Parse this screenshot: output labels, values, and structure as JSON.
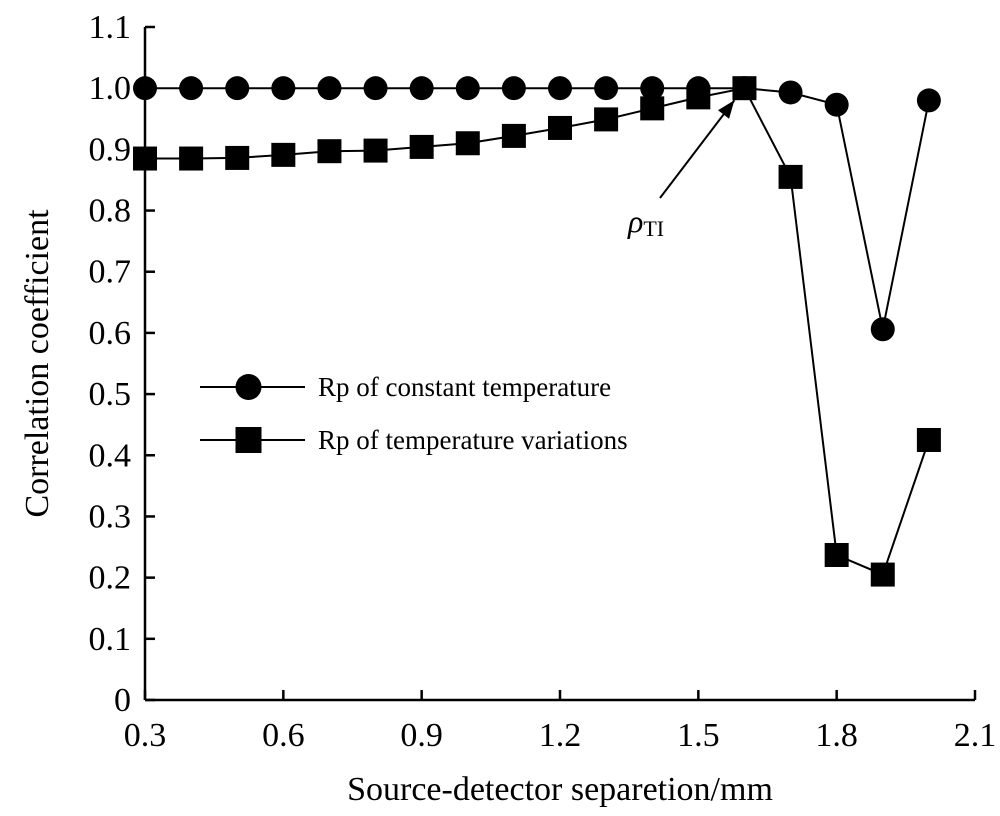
{
  "chart_data": {
    "type": "line",
    "xlabel": "Source-detector separetion/mm",
    "ylabel": "Correlation coefficient",
    "xlim": [
      0.3,
      2.1
    ],
    "ylim": [
      0,
      1.1
    ],
    "xticks": [
      "0.3",
      "0.6",
      "0.9",
      "1.2",
      "1.5",
      "1.8",
      "2.1"
    ],
    "yticks": [
      "0",
      "0.1",
      "0.2",
      "0.3",
      "0.4",
      "0.5",
      "0.6",
      "0.7",
      "0.8",
      "0.9",
      "1.0",
      "1.1"
    ],
    "grid": false,
    "legend_position": "middle-left",
    "series": [
      {
        "name": "Rp of constant temperature",
        "marker": "circle",
        "color": "#000000",
        "x": [
          0.3,
          0.4,
          0.5,
          0.6,
          0.7,
          0.8,
          0.9,
          1.0,
          1.1,
          1.2,
          1.3,
          1.4,
          1.5,
          1.6,
          1.7,
          1.8,
          1.9,
          2.0
        ],
        "y": [
          1.0,
          1.0,
          1.0,
          1.0,
          1.0,
          1.0,
          1.0,
          1.0,
          1.0,
          1.0,
          1.0,
          1.0,
          1.0,
          1.0,
          0.993,
          0.973,
          0.606,
          0.98
        ]
      },
      {
        "name": "Rp of temperature variations",
        "marker": "square",
        "color": "#000000",
        "x": [
          0.3,
          0.4,
          0.5,
          0.6,
          0.7,
          0.8,
          0.9,
          1.0,
          1.1,
          1.2,
          1.3,
          1.4,
          1.5,
          1.6,
          1.7,
          1.8,
          1.9,
          2.0
        ],
        "y": [
          0.885,
          0.885,
          0.886,
          0.891,
          0.897,
          0.898,
          0.904,
          0.91,
          0.922,
          0.935,
          0.949,
          0.967,
          0.985,
          1.0,
          0.855,
          0.237,
          0.205,
          0.425
        ]
      }
    ],
    "annotation": {
      "text_main": "ρ",
      "text_sub": "TI",
      "target_x": 1.6,
      "target_y": 1.0
    }
  }
}
